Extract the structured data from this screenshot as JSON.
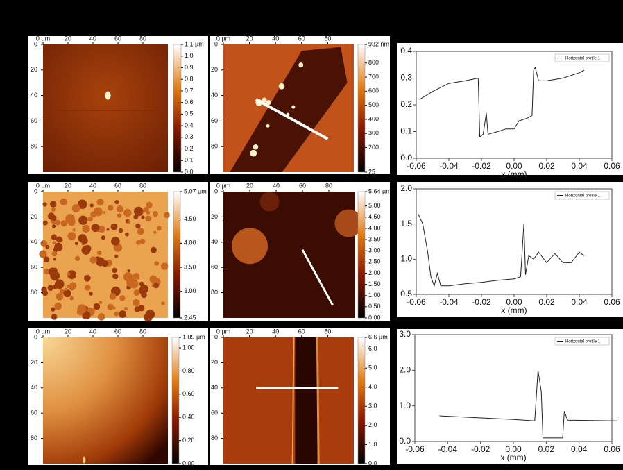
{
  "chart_data": [
    {
      "type": "heatmap",
      "xlim": [
        0,
        100
      ],
      "xticks": [
        {
          "value": 0,
          "label": "0 µm"
        },
        20,
        40,
        60,
        80
      ],
      "ylim": [
        0,
        100
      ],
      "yticks": [
        0,
        20,
        40,
        60,
        80
      ],
      "clim": [
        0,
        1.1
      ],
      "cticks": [
        {
          "value": 1.1,
          "label": "1.1 µm"
        },
        {
          "value": 1,
          "label": "1.0"
        },
        0.9,
        0.8,
        0.7,
        0.6,
        0.5,
        0.4,
        0.3,
        0.2,
        0.1,
        {
          "value": 0,
          "label": "0.0"
        }
      ]
    },
    {
      "type": "heatmap",
      "xlim": [
        0,
        100
      ],
      "xticks": [
        {
          "value": 0,
          "label": "0 µm"
        },
        20,
        40,
        60,
        80
      ],
      "ylim": [
        0,
        100
      ],
      "yticks": [
        0,
        20,
        40,
        60,
        80
      ],
      "clim": [
        25,
        932
      ],
      "cticks": [
        {
          "value": 932,
          "label": "932 nm"
        },
        800,
        700,
        600,
        500,
        400,
        300,
        200,
        25
      ]
    },
    {
      "type": "line",
      "xlabel": "x (mm)",
      "xlim": [
        -0.06,
        0.06
      ],
      "xticks": [
        -0.06,
        -0.04,
        -0.02,
        {
          "value": 0,
          "label": "0.00"
        },
        0.02,
        0.04,
        0.06
      ],
      "ylim": [
        0,
        0.4
      ],
      "yticks": [
        {
          "value": 0,
          "label": "0.0"
        },
        0.1,
        0.2,
        0.3,
        0.4
      ],
      "legend": "upper right",
      "x": [
        -0.058,
        -0.05,
        -0.04,
        -0.03,
        -0.022,
        -0.021,
        -0.019,
        -0.017,
        -0.016,
        -0.01,
        -0.005,
        0,
        0.003,
        0.008,
        0.011,
        0.012,
        0.013,
        0.015,
        0.02,
        0.03,
        0.04,
        0.043
      ],
      "series": [
        {
          "name": "Horizontal profile 1",
          "color": "#222222",
          "values": [
            0.22,
            0.25,
            0.28,
            0.29,
            0.3,
            0.08,
            0.09,
            0.17,
            0.09,
            0.1,
            0.11,
            0.11,
            0.14,
            0.15,
            0.16,
            0.33,
            0.34,
            0.29,
            0.29,
            0.3,
            0.32,
            0.33
          ]
        }
      ]
    },
    {
      "type": "heatmap",
      "xlim": [
        0,
        100
      ],
      "xticks": [
        {
          "value": 0,
          "label": "0 µm"
        },
        20,
        40,
        60,
        80
      ],
      "ylim": [
        0,
        100
      ],
      "yticks": [
        0,
        20,
        40,
        60,
        80
      ],
      "clim": [
        2.45,
        5.07
      ],
      "cticks": [
        {
          "value": 5.07,
          "label": "5.07 µm"
        },
        {
          "value": 4.5,
          "label": "4.50"
        },
        {
          "value": 4,
          "label": "4.00"
        },
        {
          "value": 3.5,
          "label": "3.50"
        },
        {
          "value": 3,
          "label": "3.00"
        },
        2.45
      ]
    },
    {
      "type": "heatmap",
      "xlim": [
        0,
        100
      ],
      "xticks": [
        {
          "value": 0,
          "label": "0 µm"
        },
        20,
        40,
        60,
        80
      ],
      "ylim": [
        0,
        100
      ],
      "yticks": [
        0,
        20,
        40,
        60,
        80
      ],
      "clim": [
        0,
        5.64
      ],
      "cticks": [
        {
          "value": 5.64,
          "label": "5.64 µm"
        },
        {
          "value": 5,
          "label": "5.00"
        },
        {
          "value": 4.5,
          "label": "4.50"
        },
        {
          "value": 4,
          "label": "4.00"
        },
        {
          "value": 3.5,
          "label": "3.50"
        },
        {
          "value": 3,
          "label": "3.00"
        },
        {
          "value": 2.5,
          "label": "2.50"
        },
        {
          "value": 2,
          "label": "2.00"
        },
        {
          "value": 1.5,
          "label": "1.50"
        },
        {
          "value": 1,
          "label": "1.00"
        },
        {
          "value": 0.5,
          "label": "0.50"
        },
        {
          "value": 0,
          "label": "0.00"
        }
      ]
    },
    {
      "type": "line",
      "xlabel": "x (mm)",
      "xlim": [
        -0.06,
        0.06
      ],
      "xticks": [
        -0.06,
        -0.04,
        -0.02,
        {
          "value": 0,
          "label": "0.00"
        },
        0.02,
        0.04,
        0.06
      ],
      "ylim": [
        0.5,
        2.0
      ],
      "yticks": [
        0.5,
        {
          "value": 1,
          "label": "1.0"
        },
        1.5,
        {
          "value": 2,
          "label": "2.0"
        }
      ],
      "legend": "upper right",
      "x": [
        -0.059,
        -0.056,
        -0.053,
        -0.051,
        -0.049,
        -0.047,
        -0.045,
        -0.04,
        -0.03,
        -0.02,
        -0.01,
        0,
        0.004,
        0.006,
        0.007,
        0.009,
        0.012,
        0.015,
        0.02,
        0.025,
        0.03,
        0.035,
        0.04,
        0.043
      ],
      "series": [
        {
          "name": "Horizontal profile 1",
          "color": "#222222",
          "values": [
            1.65,
            1.5,
            1.1,
            0.75,
            0.62,
            0.8,
            0.62,
            0.62,
            0.65,
            0.67,
            0.7,
            0.72,
            0.75,
            1.5,
            0.78,
            1.05,
            1.0,
            1.1,
            0.95,
            1.08,
            0.95,
            0.95,
            1.1,
            1.05
          ]
        }
      ]
    },
    {
      "type": "heatmap",
      "xlim": [
        0,
        100
      ],
      "xticks": [
        {
          "value": 0,
          "label": "0 µm"
        },
        20,
        40,
        60,
        80
      ],
      "ylim": [
        0,
        100
      ],
      "yticks": [
        0,
        20,
        40,
        60,
        80
      ],
      "clim": [
        0,
        1.09
      ],
      "cticks": [
        {
          "value": 1.09,
          "label": "1.09 µm"
        },
        {
          "value": 1,
          "label": "1.00"
        },
        {
          "value": 0.8,
          "label": "0.80"
        },
        {
          "value": 0.6,
          "label": "0.60"
        },
        {
          "value": 0.4,
          "label": "0.40"
        },
        {
          "value": 0.2,
          "label": "0.20"
        },
        {
          "value": 0,
          "label": "0.00"
        }
      ]
    },
    {
      "type": "heatmap",
      "xlim": [
        0,
        100
      ],
      "xticks": [
        {
          "value": 0,
          "label": "0 µm"
        },
        20,
        40,
        60,
        80
      ],
      "ylim": [
        0,
        100
      ],
      "yticks": [
        0,
        20,
        40,
        60,
        80
      ],
      "clim": [
        0,
        6.6
      ],
      "cticks": [
        {
          "value": 6.6,
          "label": "6.6 µm"
        },
        {
          "value": 6,
          "label": "6.0"
        },
        {
          "value": 5,
          "label": "5.0"
        },
        {
          "value": 4,
          "label": "4.0"
        },
        {
          "value": 3,
          "label": "3.0"
        },
        {
          "value": 2,
          "label": "2.0"
        },
        {
          "value": 1,
          "label": "1.0"
        },
        {
          "value": 0,
          "label": "0.0"
        }
      ]
    },
    {
      "type": "line",
      "xlabel": "x (mm)",
      "xlim": [
        -0.06,
        0.06
      ],
      "xticks": [
        -0.06,
        -0.04,
        -0.02,
        {
          "value": 0,
          "label": "0.00"
        },
        0.02,
        0.04,
        0.06
      ],
      "ylim": [
        0,
        3.0
      ],
      "yticks": [
        {
          "value": 0,
          "label": "0.0"
        },
        {
          "value": 1,
          "label": "1.0"
        },
        {
          "value": 2,
          "label": "2.0"
        },
        {
          "value": 3,
          "label": "3.0"
        }
      ],
      "legend": "upper right",
      "x": [
        -0.045,
        0,
        0.013,
        0.015,
        0.017,
        0.018,
        0.03,
        0.031,
        0.033,
        0.063
      ],
      "series": [
        {
          "name": "Horizontal profile 1",
          "color": "#222222",
          "values": [
            0.72,
            0.62,
            0.58,
            2.0,
            1.4,
            0.1,
            0.1,
            0.85,
            0.6,
            0.58
          ]
        }
      ]
    }
  ]
}
